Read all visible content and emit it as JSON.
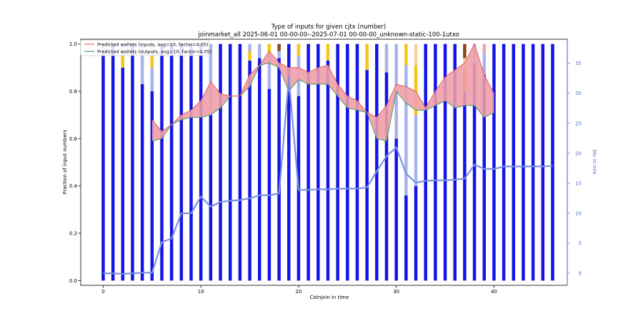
{
  "chart_data": {
    "type": "bar",
    "title": "Type of inputs for given cjtx (number)",
    "subtitle": "joinmarket_all 2025-06-01 00-00-00--2025-07-01 00-00-00_unknown-static-100-1utxo",
    "xlabel": "Coinjoin in time",
    "ylabel": "Fraction of input numbers",
    "y2label": "btc in mix",
    "xlim": [
      -2.3,
      47.5
    ],
    "ylim": [
      -0.02,
      1.02
    ],
    "y2lim": [
      -2,
      39
    ],
    "x_ticks": [
      0,
      10,
      20,
      30,
      40
    ],
    "y_ticks": [
      0.0,
      0.2,
      0.4,
      0.6,
      0.8,
      1.0
    ],
    "y2_ticks": [
      0,
      5,
      10,
      15,
      20,
      25,
      30,
      35
    ],
    "legend_position": "top-left",
    "colors": {
      "fresh": "#1414e6",
      "remix": "#a9b2f0",
      "yellow": "#f5c518",
      "light_orange": "#f7d3a0",
      "brown": "#8b4513",
      "orange": "#f29a2e",
      "pink": "#f4a3a8",
      "inputs_line": "#e06060",
      "inputs_fill": "#f0a0a8",
      "outputs_line": "#4a9a5a",
      "outputs_fill": "#9acfae",
      "btc_line": "#7b91e0"
    },
    "legend": [
      {
        "label": "Predicted wallets (inputs, avg=10, factor=4.05)",
        "color": "#e06060"
      },
      {
        "label": "Predicted wallets (outputs, avg=10, factor=4.05)",
        "color": "#4a9a5a"
      }
    ],
    "bars": [
      {
        "x": 0,
        "segments": [
          {
            "c": "fresh",
            "v": 0.95
          },
          {
            "c": "remix",
            "v": 0.05
          }
        ]
      },
      {
        "x": 1,
        "segments": [
          {
            "c": "fresh",
            "v": 1.0
          }
        ]
      },
      {
        "x": 2,
        "segments": [
          {
            "c": "fresh",
            "v": 0.9
          },
          {
            "c": "yellow",
            "v": 0.05
          },
          {
            "c": "remix",
            "v": 0.05
          }
        ]
      },
      {
        "x": 3,
        "segments": [
          {
            "c": "fresh",
            "v": 1.0
          }
        ]
      },
      {
        "x": 4,
        "segments": [
          {
            "c": "fresh",
            "v": 0.83
          },
          {
            "c": "remix",
            "v": 0.17
          }
        ]
      },
      {
        "x": 5,
        "segments": [
          {
            "c": "fresh",
            "v": 0.8
          },
          {
            "c": "remix",
            "v": 0.1
          },
          {
            "c": "yellow",
            "v": 0.05
          },
          {
            "c": "remix",
            "v": 0.05
          }
        ]
      },
      {
        "x": 6,
        "segments": [
          {
            "c": "fresh",
            "v": 1.0
          }
        ]
      },
      {
        "x": 7,
        "segments": [
          {
            "c": "fresh",
            "v": 1.0
          }
        ]
      },
      {
        "x": 8,
        "segments": [
          {
            "c": "fresh",
            "v": 1.0
          }
        ]
      },
      {
        "x": 9,
        "segments": [
          {
            "c": "fresh",
            "v": 1.0
          }
        ]
      },
      {
        "x": 10,
        "segments": [
          {
            "c": "fresh",
            "v": 1.0
          }
        ]
      },
      {
        "x": 11,
        "segments": [
          {
            "c": "fresh",
            "v": 0.7
          },
          {
            "c": "remix",
            "v": 0.3
          }
        ]
      },
      {
        "x": 12,
        "segments": [
          {
            "c": "fresh",
            "v": 1.0
          }
        ]
      },
      {
        "x": 13,
        "segments": [
          {
            "c": "fresh",
            "v": 1.0
          }
        ]
      },
      {
        "x": 14,
        "segments": [
          {
            "c": "fresh",
            "v": 1.0
          }
        ]
      },
      {
        "x": 15,
        "segments": [
          {
            "c": "fresh",
            "v": 0.93
          },
          {
            "c": "yellow",
            "v": 0.04
          },
          {
            "c": "remix",
            "v": 0.03
          }
        ]
      },
      {
        "x": 16,
        "segments": [
          {
            "c": "fresh",
            "v": 0.94
          },
          {
            "c": "remix",
            "v": 0.06
          }
        ]
      },
      {
        "x": 17,
        "segments": [
          {
            "c": "fresh",
            "v": 0.81
          },
          {
            "c": "remix",
            "v": 0.15
          },
          {
            "c": "yellow",
            "v": 0.04
          }
        ]
      },
      {
        "x": 18,
        "segments": [
          {
            "c": "fresh",
            "v": 0.94
          },
          {
            "c": "remix",
            "v": 0.03
          },
          {
            "c": "brown",
            "v": 0.03
          }
        ]
      },
      {
        "x": 19,
        "segments": [
          {
            "c": "fresh",
            "v": 1.0
          }
        ]
      },
      {
        "x": 20,
        "segments": [
          {
            "c": "fresh",
            "v": 0.78
          },
          {
            "c": "remix",
            "v": 0.17
          },
          {
            "c": "yellow",
            "v": 0.05
          }
        ]
      },
      {
        "x": 21,
        "segments": [
          {
            "c": "fresh",
            "v": 1.0
          }
        ]
      },
      {
        "x": 22,
        "segments": [
          {
            "c": "fresh",
            "v": 1.0
          }
        ]
      },
      {
        "x": 23,
        "segments": [
          {
            "c": "fresh",
            "v": 0.93
          },
          {
            "c": "yellow",
            "v": 0.07
          }
        ]
      },
      {
        "x": 24,
        "segments": [
          {
            "c": "fresh",
            "v": 1.0
          }
        ]
      },
      {
        "x": 25,
        "segments": [
          {
            "c": "fresh",
            "v": 1.0
          }
        ]
      },
      {
        "x": 26,
        "segments": [
          {
            "c": "fresh",
            "v": 1.0
          }
        ]
      },
      {
        "x": 27,
        "segments": [
          {
            "c": "fresh",
            "v": 0.89
          },
          {
            "c": "yellow",
            "v": 0.11
          }
        ]
      },
      {
        "x": 28,
        "segments": [
          {
            "c": "fresh",
            "v": 1.0
          }
        ]
      },
      {
        "x": 29,
        "segments": [
          {
            "c": "fresh",
            "v": 0.88
          },
          {
            "c": "remix",
            "v": 0.12
          }
        ]
      },
      {
        "x": 30,
        "segments": [
          {
            "c": "fresh",
            "v": 0.6
          },
          {
            "c": "remix",
            "v": 0.4
          }
        ]
      },
      {
        "x": 31,
        "segments": [
          {
            "c": "fresh",
            "v": 0.36
          },
          {
            "c": "remix",
            "v": 0.55
          },
          {
            "c": "yellow",
            "v": 0.09
          }
        ]
      },
      {
        "x": 32,
        "segments": [
          {
            "c": "fresh",
            "v": 0.4
          },
          {
            "c": "remix",
            "v": 0.3
          },
          {
            "c": "yellow",
            "v": 0.21
          },
          {
            "c": "light_orange",
            "v": 0.09
          }
        ]
      },
      {
        "x": 33,
        "segments": [
          {
            "c": "fresh",
            "v": 1.0
          }
        ]
      },
      {
        "x": 34,
        "segments": [
          {
            "c": "fresh",
            "v": 1.0
          }
        ]
      },
      {
        "x": 35,
        "segments": [
          {
            "c": "fresh",
            "v": 1.0
          }
        ]
      },
      {
        "x": 36,
        "segments": [
          {
            "c": "fresh",
            "v": 1.0
          }
        ]
      },
      {
        "x": 37,
        "segments": [
          {
            "c": "fresh",
            "v": 0.8
          },
          {
            "c": "orange",
            "v": 0.1
          },
          {
            "c": "light_orange",
            "v": 0.04
          },
          {
            "c": "brown",
            "v": 0.06
          }
        ]
      },
      {
        "x": 38,
        "segments": [
          {
            "c": "fresh",
            "v": 0.92
          },
          {
            "c": "remix",
            "v": 0.08
          }
        ]
      },
      {
        "x": 39,
        "segments": [
          {
            "c": "fresh",
            "v": 0.87
          },
          {
            "c": "remix",
            "v": 0.09
          },
          {
            "c": "pink",
            "v": 0.04
          }
        ]
      },
      {
        "x": 40,
        "segments": [
          {
            "c": "fresh",
            "v": 1.0
          }
        ]
      },
      {
        "x": 41,
        "segments": [
          {
            "c": "fresh",
            "v": 1.0
          }
        ]
      },
      {
        "x": 42,
        "segments": [
          {
            "c": "fresh",
            "v": 1.0
          }
        ]
      },
      {
        "x": 43,
        "segments": [
          {
            "c": "fresh",
            "v": 1.0
          }
        ]
      },
      {
        "x": 44,
        "segments": [
          {
            "c": "fresh",
            "v": 1.0
          }
        ]
      },
      {
        "x": 45,
        "segments": [
          {
            "c": "fresh",
            "v": 1.0
          }
        ]
      },
      {
        "x": 46,
        "segments": [
          {
            "c": "fresh",
            "v": 1.0
          }
        ]
      }
    ],
    "predicted_inputs": {
      "name": "Predicted wallets (inputs, avg=10, factor=4.05)",
      "x": [
        5,
        6,
        7,
        8,
        9,
        10,
        11,
        12,
        13,
        14,
        15,
        16,
        17,
        18,
        19,
        20,
        21,
        22,
        23,
        24,
        25,
        26,
        27,
        28,
        29,
        30,
        31,
        32,
        33,
        34,
        35,
        36,
        37,
        38,
        39,
        40
      ],
      "values": [
        0.68,
        0.63,
        0.66,
        0.7,
        0.72,
        0.76,
        0.84,
        0.79,
        0.78,
        0.78,
        0.87,
        0.91,
        0.97,
        0.92,
        0.9,
        0.9,
        0.88,
        0.9,
        0.91,
        0.83,
        0.78,
        0.76,
        0.71,
        0.69,
        0.74,
        0.83,
        0.82,
        0.8,
        0.73,
        0.8,
        0.86,
        0.89,
        0.92,
        1.0,
        0.87,
        0.79
      ]
    },
    "predicted_outputs": {
      "name": "Predicted wallets (outputs, avg=10, factor=4.05)",
      "x": [
        5,
        6,
        7,
        8,
        9,
        10,
        11,
        12,
        13,
        14,
        15,
        16,
        17,
        18,
        19,
        20,
        21,
        22,
        23,
        24,
        25,
        26,
        27,
        28,
        29,
        30,
        31,
        32,
        33,
        34,
        35,
        36,
        37,
        38,
        39,
        40
      ],
      "values": [
        0.59,
        0.6,
        0.66,
        0.68,
        0.69,
        0.69,
        0.7,
        0.73,
        0.78,
        0.78,
        0.82,
        0.91,
        0.92,
        0.9,
        0.8,
        0.85,
        0.83,
        0.83,
        0.83,
        0.78,
        0.73,
        0.72,
        0.71,
        0.6,
        0.59,
        0.8,
        0.75,
        0.72,
        0.72,
        0.74,
        0.76,
        0.73,
        0.74,
        0.74,
        0.69,
        0.71
      ]
    },
    "btc_in_mix": {
      "x": [
        0,
        1,
        2,
        3,
        4,
        5,
        6,
        7,
        8,
        9,
        10,
        11,
        12,
        13,
        14,
        15,
        16,
        17,
        18,
        19,
        20,
        21,
        22,
        23,
        24,
        25,
        26,
        27,
        28,
        29,
        30,
        31,
        32,
        33,
        34,
        35,
        36,
        37,
        38,
        39,
        40,
        41,
        42,
        43,
        44,
        45,
        46
      ],
      "values": [
        0.0,
        0.0,
        -0.1,
        0.0,
        0.1,
        0.1,
        5.2,
        5.8,
        10.0,
        10.0,
        12.8,
        11.1,
        11.9,
        12.1,
        12.2,
        12.5,
        13.0,
        13.0,
        13.3,
        32.5,
        13.9,
        13.9,
        14.0,
        14.0,
        14.1,
        14.1,
        14.1,
        14.3,
        17.0,
        19.5,
        21.0,
        16.6,
        15.1,
        15.4,
        15.5,
        15.5,
        15.6,
        15.8,
        18.1,
        17.4,
        17.4,
        17.8,
        17.8,
        17.8,
        17.8,
        17.8,
        17.9
      ]
    }
  }
}
